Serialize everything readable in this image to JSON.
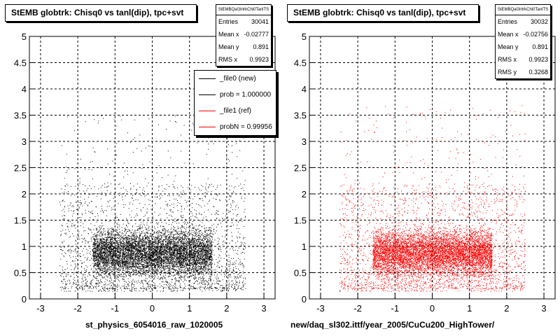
{
  "colors": {
    "new": "#000000",
    "ref": "#ff0000"
  },
  "panels": [
    {
      "title": "StEMB globtrk: Chisq0 vs tanl(dip), tpc+svt",
      "stats": {
        "name": "StEMBQaGlrtrkChi0TanlTS",
        "rows": [
          {
            "label": "Entries",
            "value": "30041"
          },
          {
            "label": "Mean x",
            "value": "-0.02777"
          },
          {
            "label": "Mean y",
            "value": "0.891"
          },
          {
            "label": "RMS x",
            "value": "0.9923"
          }
        ]
      },
      "legend": [
        {
          "label": "_file0 (new)",
          "color": "#000000"
        },
        {
          "label": "prob = 1.000000",
          "color": "#000000"
        },
        {
          "label": "_file1 (ref)",
          "color": "#ff0000"
        },
        {
          "label": "probN = 0.99956",
          "color": "#ff0000"
        }
      ],
      "xcaption": "st_physics_6054016_raw_1020005"
    },
    {
      "title": "StEMB globtrk: Chisq0 vs tanl(dip), tpc+svt",
      "stats": {
        "name": "StEMBQaGlrtrkChi0TanlTS",
        "rows": [
          {
            "label": "Entries",
            "value": "30032"
          },
          {
            "label": "Mean x",
            "value": "-0.02756"
          },
          {
            "label": "Mean y",
            "value": "0.891"
          },
          {
            "label": "RMS x",
            "value": "0.9923"
          },
          {
            "label": "RMS y",
            "value": "0.3268"
          }
        ]
      },
      "xcaption": "new/daq_sl302.ittf/year_2005/CuCu200_HighTower/"
    }
  ],
  "chart_data": [
    {
      "type": "scatter",
      "title": "StEMB globtrk: Chisq0 vs tanl(dip), tpc+svt",
      "xlim": [
        -3.3,
        3.3
      ],
      "ylim": [
        0,
        5
      ],
      "xticks": [
        "-3",
        "-2",
        "-1",
        "0",
        "1",
        "2",
        "3"
      ],
      "yticks": [
        "0",
        "0.5",
        "1",
        "1.5",
        "2",
        "2.5",
        "3",
        "3.5",
        "4",
        "4.5",
        "5"
      ],
      "grid": true,
      "series": [
        {
          "name": "_file0 (new)",
          "color": "#000000",
          "entries": 30041,
          "density_core": {
            "x_range": [
              -1.6,
              1.6
            ],
            "y_range": [
              0.25,
              1.5
            ]
          },
          "outer_x_range": [
            -2.5,
            2.5
          ],
          "outer_y_range": [
            0.15,
            3.5
          ]
        }
      ]
    },
    {
      "type": "scatter",
      "title": "StEMB globtrk: Chisq0 vs tanl(dip), tpc+svt",
      "xlim": [
        -3.3,
        3.3
      ],
      "ylim": [
        0,
        5
      ],
      "xticks": [
        "-3",
        "-2",
        "-1",
        "0",
        "1",
        "2",
        "3"
      ],
      "yticks": [
        "0",
        "0.5",
        "1",
        "1.5",
        "2",
        "2.5",
        "3",
        "3.5",
        "4",
        "4.5",
        "5"
      ],
      "grid": true,
      "series": [
        {
          "name": "_file1 (ref)",
          "color": "#ff0000",
          "entries": 30032,
          "density_core": {
            "x_range": [
              -1.6,
              1.6
            ],
            "y_range": [
              0.25,
              1.5
            ]
          },
          "outer_x_range": [
            -2.5,
            2.5
          ],
          "outer_y_range": [
            0.15,
            3.7
          ]
        }
      ]
    }
  ]
}
